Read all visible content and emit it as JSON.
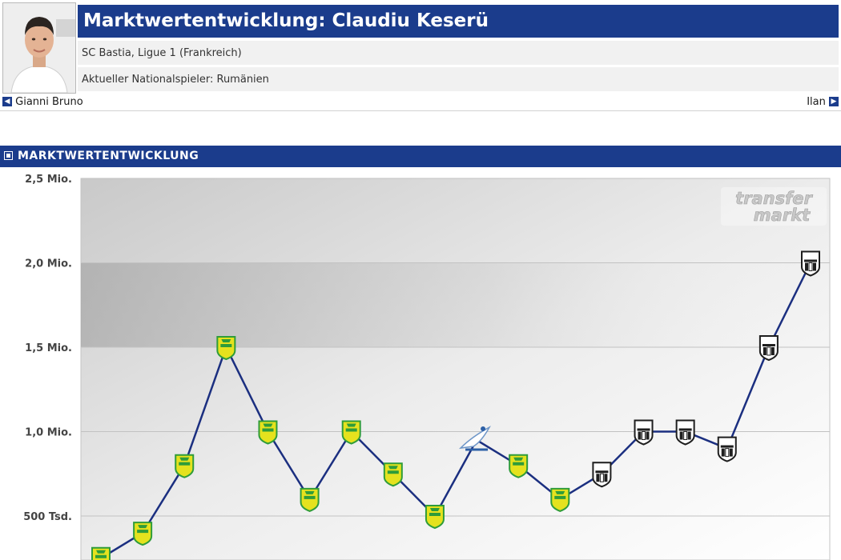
{
  "header": {
    "title": "Marktwertentwicklung: Claudiu Keserü",
    "club_line": "SC Bastia, Ligue 1 (Frankreich)",
    "national_line": "Aktueller Nationalspieler: Rumänien"
  },
  "nav": {
    "prev_label": "Gianni Bruno",
    "next_label": "Ilan"
  },
  "section": {
    "title": "MARKTWERTENTWICKLUNG"
  },
  "watermark": {
    "line1": "transfer",
    "line2": "markt"
  },
  "colors": {
    "brand_blue": "#1b3c8c",
    "line": "#1b2f80",
    "nantes_yellow": "#e5e21e",
    "nantes_green": "#2f9c3a",
    "angers_black": "#1e1e1e"
  },
  "chart_data": {
    "type": "line",
    "ylim": [
      250000,
      2500000
    ],
    "yticks": [
      {
        "value": 2500000,
        "label": "2,5 Mio."
      },
      {
        "value": 2000000,
        "label": "2,0 Mio."
      },
      {
        "value": 1500000,
        "label": "1,5 Mio."
      },
      {
        "value": 1000000,
        "label": "1,0 Mio."
      },
      {
        "value": 500000,
        "label": "500 Tsd."
      }
    ],
    "series": [
      {
        "values": [
          250000,
          400000,
          800000,
          1500000,
          1000000,
          600000,
          1000000,
          750000,
          500000,
          950000,
          800000,
          600000,
          750000,
          1000000,
          1000000,
          900000,
          1500000,
          2000000
        ],
        "markers": [
          "nantes",
          "nantes",
          "nantes",
          "nantes",
          "nantes",
          "nantes",
          "nantes",
          "nantes",
          "nantes",
          "ligue",
          "nantes",
          "nantes",
          "angers",
          "angers",
          "angers",
          "angers",
          "angers",
          "angers"
        ]
      }
    ]
  }
}
